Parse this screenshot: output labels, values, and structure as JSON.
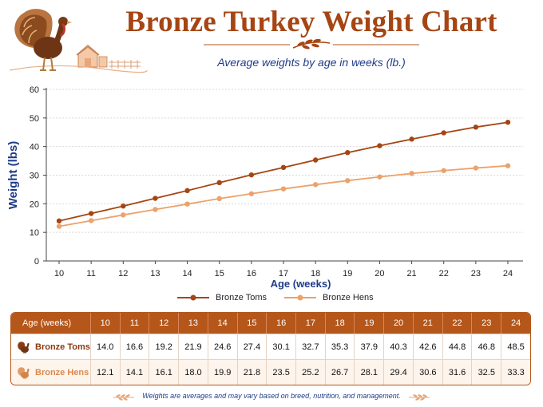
{
  "header": {
    "title": "Bronze Turkey Weight Chart",
    "subtitle": "Average weights by age in weeks (lb.)"
  },
  "colors": {
    "toms": "#a64513",
    "hens": "#eba26c",
    "title": "#a64513",
    "accent_blue": "#1f3c88",
    "table_header": "#b5561a"
  },
  "chart_data": {
    "type": "line",
    "x": [
      10,
      11,
      12,
      13,
      14,
      15,
      16,
      17,
      18,
      19,
      20,
      21,
      22,
      23,
      24
    ],
    "series": [
      {
        "name": "Bronze Toms",
        "values": [
          14.0,
          16.6,
          19.2,
          21.9,
          24.6,
          27.4,
          30.1,
          32.7,
          35.3,
          37.9,
          40.3,
          42.6,
          44.8,
          46.8,
          48.5
        ]
      },
      {
        "name": "Bronze Hens",
        "values": [
          12.1,
          14.1,
          16.1,
          18.0,
          19.9,
          21.8,
          23.5,
          25.2,
          26.7,
          28.1,
          29.4,
          30.6,
          31.6,
          32.5,
          33.3
        ]
      }
    ],
    "xlabel": "Age (weeks)",
    "ylabel": "Weight (lbs)",
    "ylim": [
      0,
      60
    ],
    "yticks": [
      0,
      10,
      20,
      30,
      40,
      50,
      60
    ],
    "grid": true,
    "legend": "bottom-center"
  },
  "table": {
    "header_label": "Age (weeks)",
    "rows": [
      {
        "label": "Bronze Toms",
        "icon": "turkey-tom-icon"
      },
      {
        "label": "Bronze Hens",
        "icon": "turkey-hen-icon"
      }
    ]
  },
  "footnote": "Weights are averages and may vary based on breed, nutrition, and management."
}
